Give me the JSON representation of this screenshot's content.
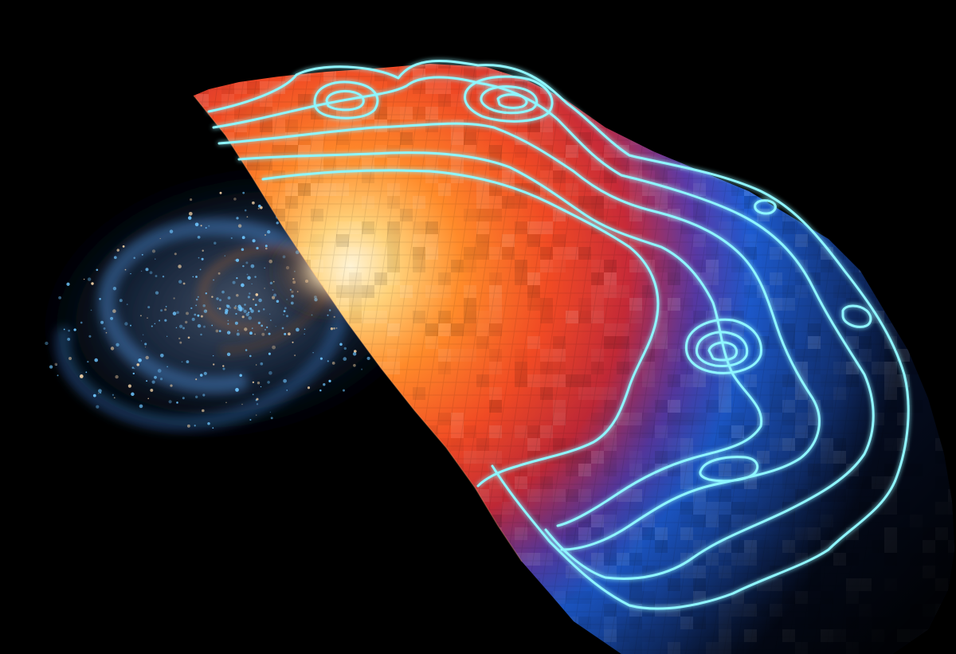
{
  "palette": {
    "background": "#000000",
    "galaxy_core": "#fff2d8",
    "galaxy_arm_blue": "#6fc6ff",
    "galaxy_dust": "#7a4a2e",
    "map_hot": "#ffe9b8",
    "map_orange": "#ff6a1e",
    "map_red": "#d8282a",
    "map_blue": "#1e5ed8",
    "map_dark_edge": "#0a1430",
    "contour_glow": "#7ff2ff"
  }
}
